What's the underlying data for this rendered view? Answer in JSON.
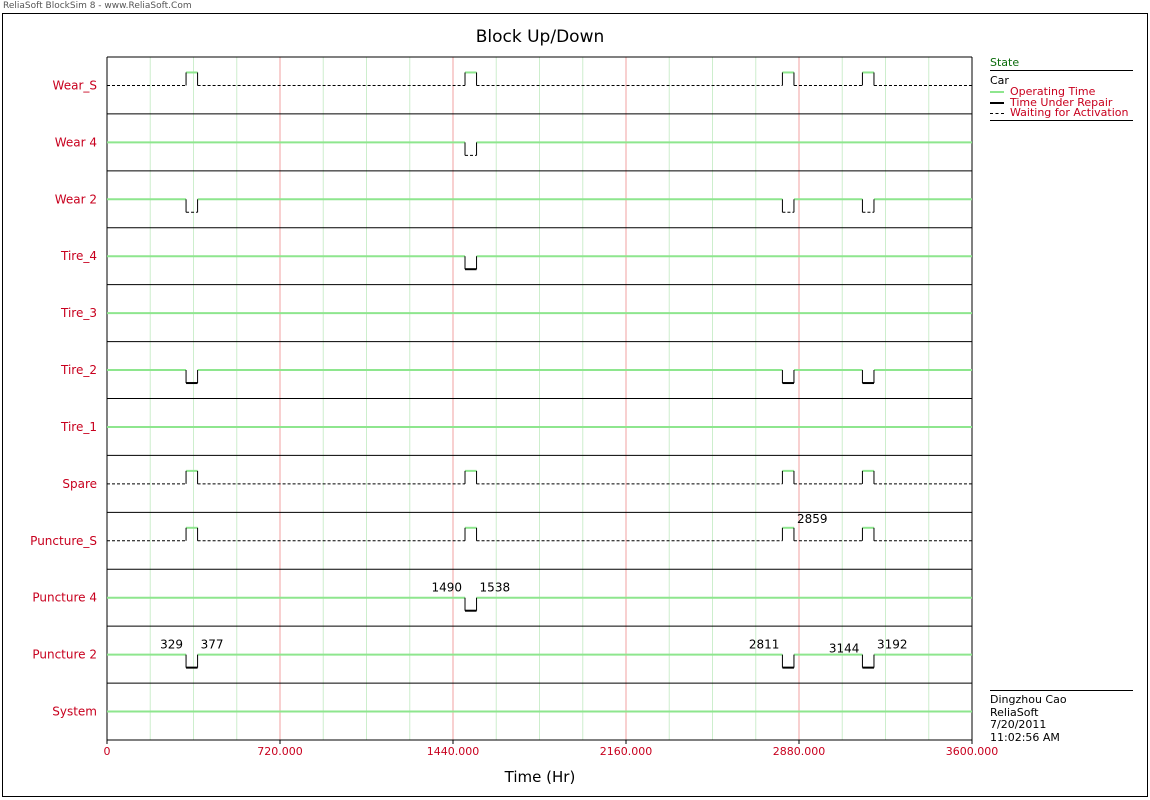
{
  "window": {
    "watermark": "ReliaSoft BlockSim 8 - www.ReliaSoft.Com"
  },
  "chart_data": {
    "type": "block up/down timeline",
    "title": "Block Up/Down",
    "xlabel": "Time (Hr)",
    "xlim": [
      0,
      3600
    ],
    "x_ticks": [
      "0",
      "720.000",
      "1440.000",
      "2160.000",
      "2880.000",
      "3600.000"
    ],
    "x_tick_values": [
      0,
      720,
      1440,
      2160,
      2880,
      3600
    ],
    "rows": [
      {
        "name": "Wear_S",
        "baseline": "waiting",
        "events": [
          {
            "start": 329,
            "end": 377,
            "kind": "operating"
          },
          {
            "start": 1490,
            "end": 1538,
            "kind": "operating"
          },
          {
            "start": 2811,
            "end": 2859,
            "kind": "operating"
          },
          {
            "start": 3144,
            "end": 3192,
            "kind": "operating"
          }
        ]
      },
      {
        "name": "Wear 4",
        "baseline": "operating",
        "events": [
          {
            "start": 1490,
            "end": 1538,
            "kind": "waiting"
          }
        ]
      },
      {
        "name": "Wear 2",
        "baseline": "operating",
        "events": [
          {
            "start": 329,
            "end": 377,
            "kind": "waiting"
          },
          {
            "start": 2811,
            "end": 2859,
            "kind": "waiting"
          },
          {
            "start": 3144,
            "end": 3192,
            "kind": "waiting"
          }
        ]
      },
      {
        "name": "Tire_4",
        "baseline": "operating",
        "events": [
          {
            "start": 1490,
            "end": 1538,
            "kind": "repair"
          }
        ]
      },
      {
        "name": "Tire_3",
        "baseline": "operating",
        "events": []
      },
      {
        "name": "Tire_2",
        "baseline": "operating",
        "events": [
          {
            "start": 329,
            "end": 377,
            "kind": "repair"
          },
          {
            "start": 2811,
            "end": 2859,
            "kind": "repair"
          },
          {
            "start": 3144,
            "end": 3192,
            "kind": "repair"
          }
        ]
      },
      {
        "name": "Tire_1",
        "baseline": "operating",
        "events": []
      },
      {
        "name": "Spare",
        "baseline": "waiting",
        "events": [
          {
            "start": 329,
            "end": 377,
            "kind": "operating"
          },
          {
            "start": 1490,
            "end": 1538,
            "kind": "operating"
          },
          {
            "start": 2811,
            "end": 2859,
            "kind": "operating"
          },
          {
            "start": 3144,
            "end": 3192,
            "kind": "operating"
          }
        ]
      },
      {
        "name": "Puncture_S",
        "baseline": "waiting",
        "events": [
          {
            "start": 329,
            "end": 377,
            "kind": "operating"
          },
          {
            "start": 1490,
            "end": 1538,
            "kind": "operating"
          },
          {
            "start": 2811,
            "end": 2859,
            "kind": "operating"
          },
          {
            "start": 3144,
            "end": 3192,
            "kind": "operating"
          }
        ]
      },
      {
        "name": "Puncture 4",
        "baseline": "operating",
        "events": [
          {
            "start": 1490,
            "end": 1538,
            "kind": "repair"
          }
        ]
      },
      {
        "name": "Puncture 2",
        "baseline": "operating",
        "events": [
          {
            "start": 329,
            "end": 377,
            "kind": "repair"
          },
          {
            "start": 2811,
            "end": 2859,
            "kind": "repair"
          },
          {
            "start": 3144,
            "end": 3192,
            "kind": "repair"
          }
        ]
      },
      {
        "name": "System",
        "baseline": "operating",
        "events": []
      }
    ],
    "annotations": [
      {
        "row": "Puncture_S",
        "x": 2859,
        "text": "2859"
      },
      {
        "row": "Puncture 4",
        "x": 1490,
        "text": "1490"
      },
      {
        "row": "Puncture 4",
        "x": 1538,
        "text": "1538"
      },
      {
        "row": "Puncture 2",
        "x": 329,
        "text": "329"
      },
      {
        "row": "Puncture 2",
        "x": 377,
        "text": "377"
      },
      {
        "row": "Puncture 2",
        "x": 2811,
        "text": "2811"
      },
      {
        "row": "Puncture 2",
        "x": 3144,
        "text": "3144"
      },
      {
        "row": "Puncture 2",
        "x": 3192,
        "text": "3192"
      }
    ],
    "colors": {
      "operating": "#8ee68e",
      "repair": "#000000",
      "waiting": "#000000",
      "row_label": "#c8001e",
      "major_grid": "#f2a0a0",
      "minor_grid": "#cdeecd",
      "tick_label": "#c8001e"
    }
  },
  "legend": {
    "title": "State",
    "subtitle": "Car",
    "items": [
      {
        "label": "Operating Time",
        "style": "operating"
      },
      {
        "label": "Time Under Repair",
        "style": "repair"
      },
      {
        "label": "Waiting for Activation",
        "style": "waiting"
      }
    ]
  },
  "info": {
    "author": "Dingzhou Cao",
    "company": "ReliaSoft",
    "date": "7/20/2011",
    "time": "11:02:56 AM"
  }
}
